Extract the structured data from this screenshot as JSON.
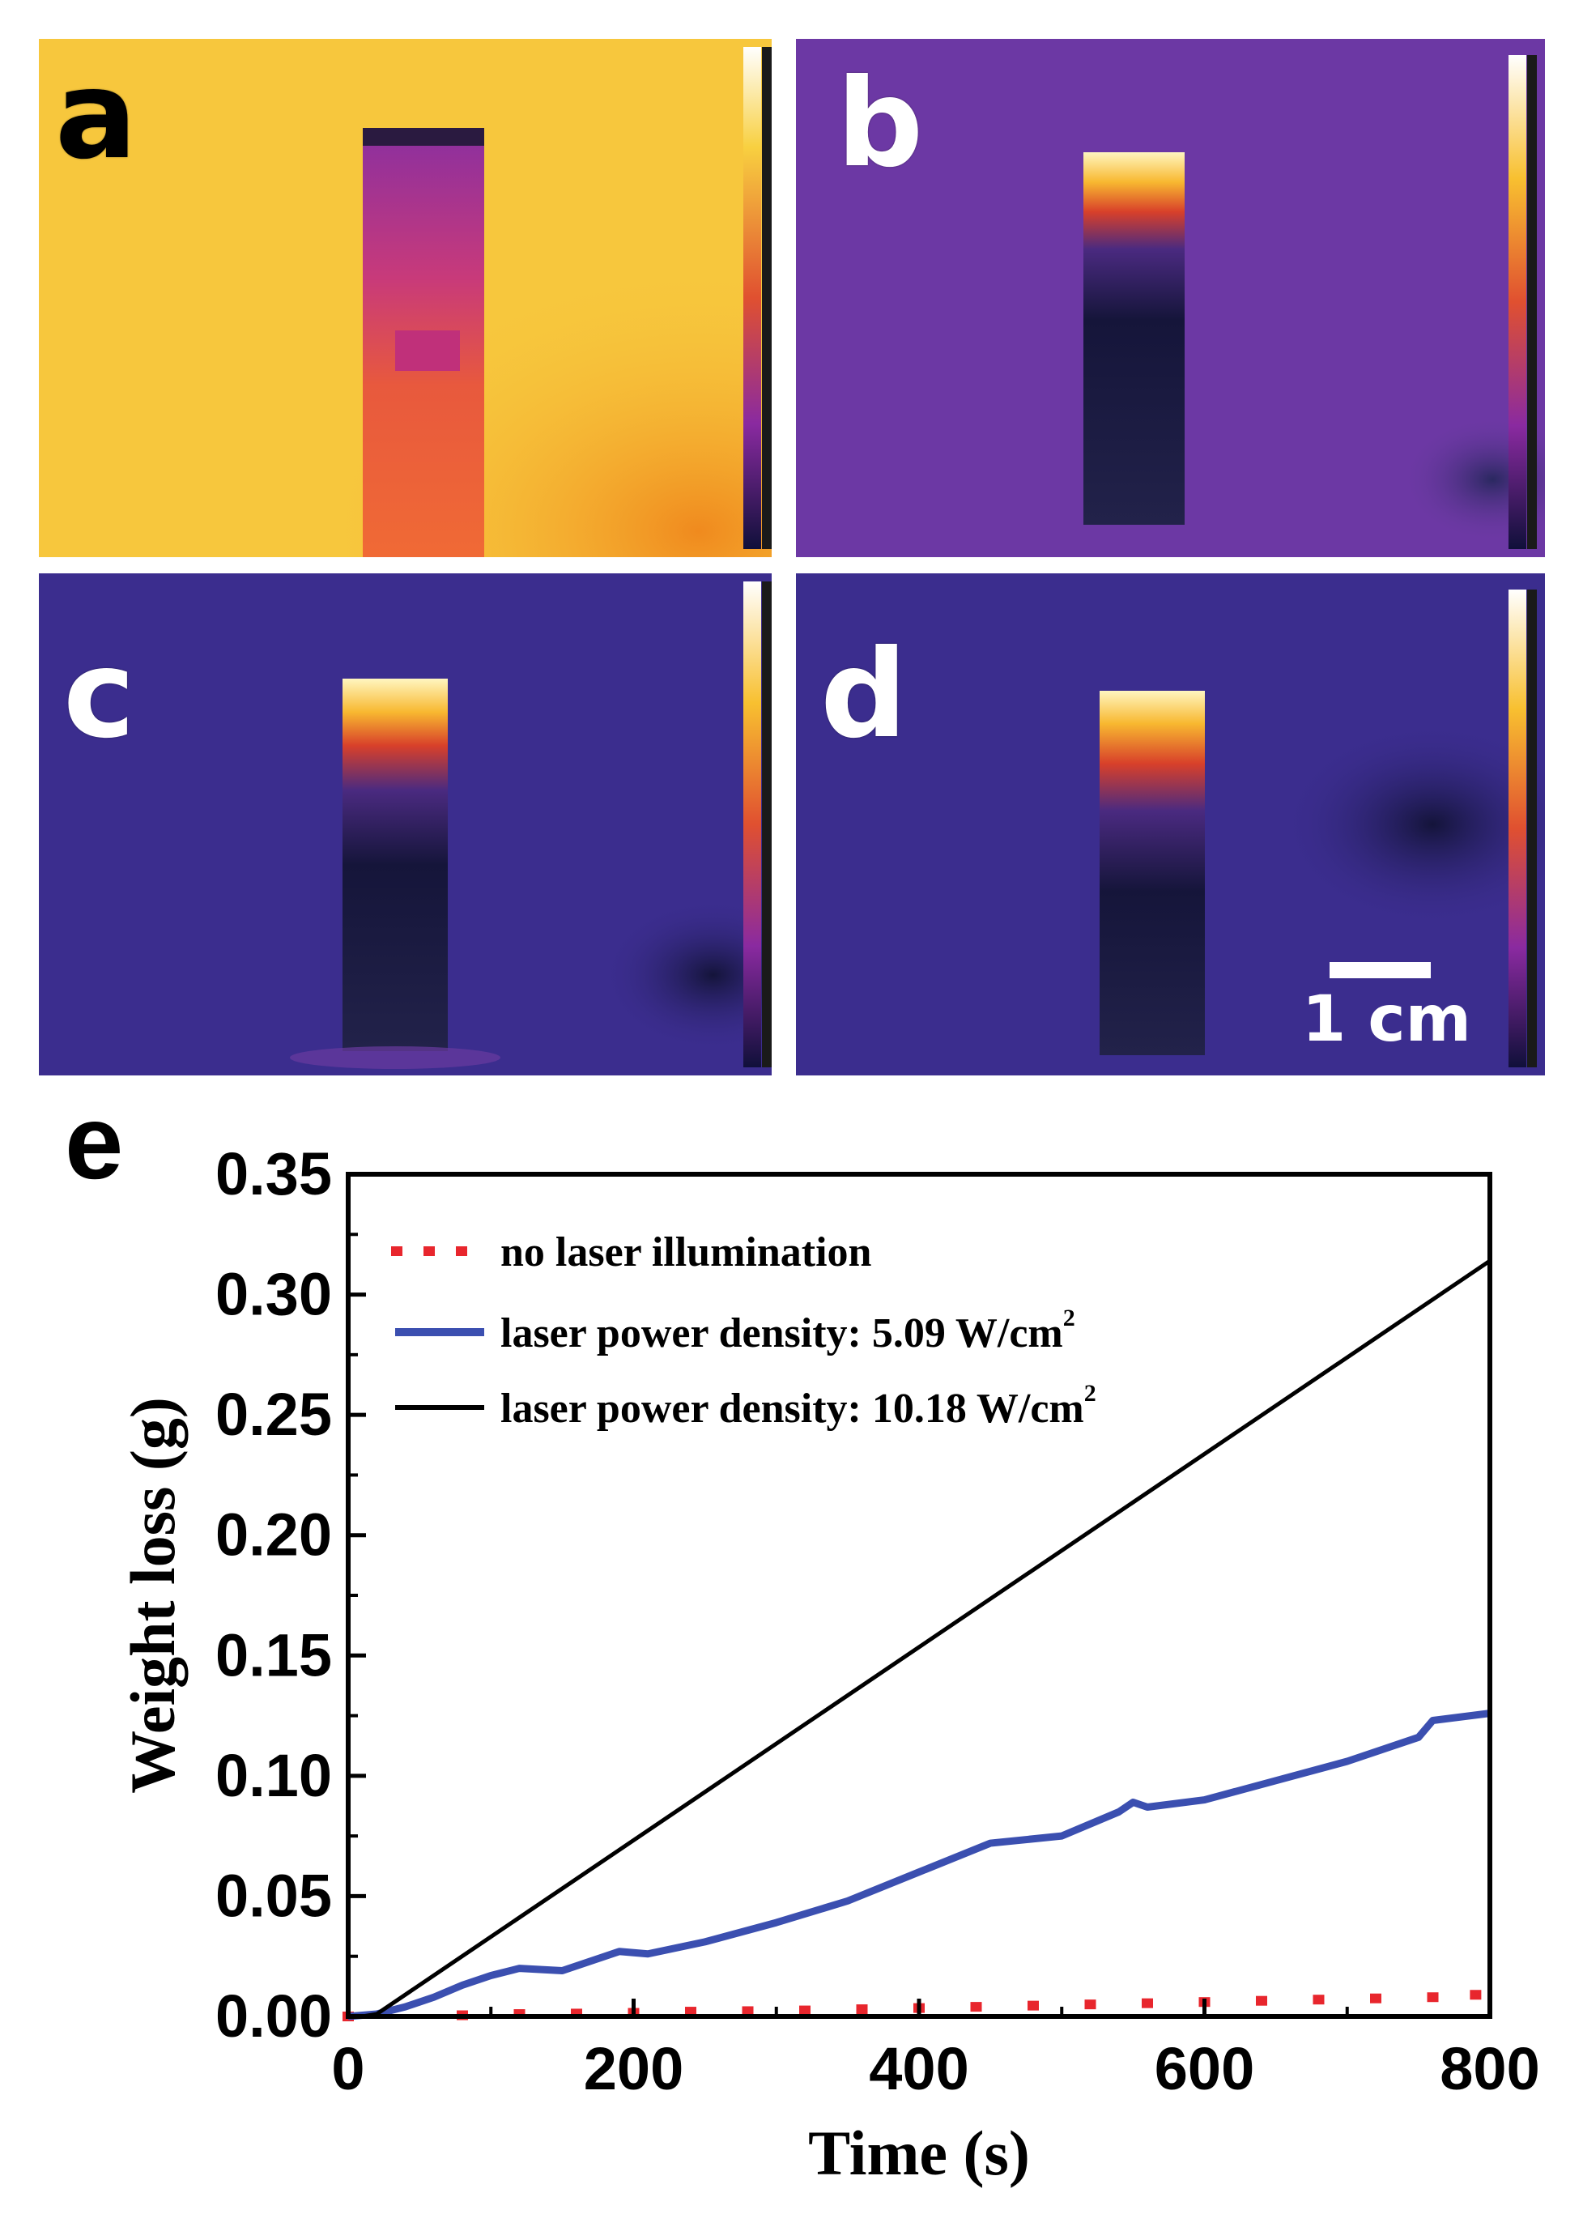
{
  "panels": [
    {
      "letter": "a",
      "letter_color": "#000000"
    },
    {
      "letter": "b",
      "letter_color": "#ffffff"
    },
    {
      "letter": "c",
      "letter_color": "#ffffff"
    },
    {
      "letter": "d",
      "letter_color": "#ffffff"
    }
  ],
  "scale_bar": {
    "label": "1 cm"
  },
  "chart_data": {
    "type": "line",
    "panel_label": "e",
    "xlabel": "Time (s)",
    "ylabel": "Weight loss (g)",
    "xlim": [
      0,
      800
    ],
    "ylim": [
      0,
      0.35
    ],
    "xticks": [
      "0",
      "200",
      "400",
      "600",
      "800"
    ],
    "yticks": [
      "0.00",
      "0.05",
      "0.10",
      "0.15",
      "0.20",
      "0.25",
      "0.30",
      "0.35"
    ],
    "legend": {
      "placement": "top-left"
    },
    "series": [
      {
        "name": "no laser illumination",
        "style": "dotted",
        "color": "#e8262d",
        "x": [
          0,
          80,
          120,
          160,
          200,
          240,
          280,
          320,
          360,
          400,
          440,
          480,
          520,
          560,
          600,
          640,
          680,
          720,
          760,
          790
        ],
        "y": [
          0,
          0.0005,
          0.001,
          0.0012,
          0.0015,
          0.002,
          0.0022,
          0.0025,
          0.003,
          0.0035,
          0.004,
          0.0045,
          0.005,
          0.0055,
          0.006,
          0.0065,
          0.007,
          0.0075,
          0.008,
          0.009
        ]
      },
      {
        "name": "laser power density: 5.09 W/cm",
        "name_sup": "2",
        "style": "solid",
        "color": "#3b4fb0",
        "x": [
          0,
          20,
          40,
          60,
          80,
          100,
          120,
          150,
          170,
          190,
          210,
          250,
          300,
          350,
          400,
          450,
          500,
          540,
          550,
          560,
          600,
          650,
          700,
          750,
          760,
          800
        ],
        "y": [
          0,
          0.001,
          0.004,
          0.008,
          0.013,
          0.017,
          0.02,
          0.019,
          0.023,
          0.027,
          0.026,
          0.031,
          0.039,
          0.048,
          0.06,
          0.072,
          0.075,
          0.085,
          0.089,
          0.087,
          0.09,
          0.098,
          0.106,
          0.116,
          0.123,
          0.126
        ]
      },
      {
        "name": "laser power density: 10.18 W/cm",
        "name_sup": "2",
        "style": "solid",
        "color": "#000000",
        "x": [
          0,
          10,
          20,
          800
        ],
        "y": [
          0,
          0.0,
          0.001,
          0.314
        ]
      }
    ]
  }
}
